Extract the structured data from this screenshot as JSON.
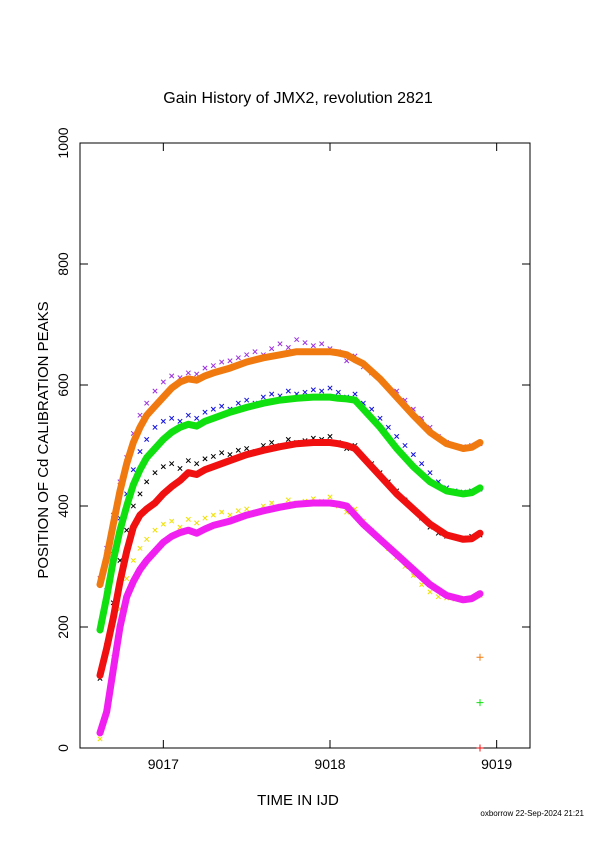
{
  "chart_data": {
    "type": "scatter",
    "title": "Gain History of JMX2, revolution 2821",
    "xlabel": "TIME IN IJD",
    "ylabel": "POSITION OF Cd CALIBRATION PEAKS",
    "xlim": [
      9016.5,
      9019.2
    ],
    "ylim": [
      0,
      1000
    ],
    "x_ticks": [
      9017,
      9018,
      9019
    ],
    "x_tick_labels": [
      "9017",
      "9018",
      "9019"
    ],
    "y_ticks": [
      0,
      200,
      400,
      600,
      800,
      1000
    ],
    "y_tick_labels": [
      "0",
      "200",
      "400",
      "600",
      "800",
      "1000"
    ],
    "grid": false,
    "footer": "oxborrow 22-Sep-2024 21:21",
    "colors": {
      "purple_scatter": "#9b30e0",
      "blue_scatter": "#1010e0",
      "black_scatter": "#000000",
      "yellow_scatter": "#f0e000",
      "orange_line": "#f07a10",
      "green_line": "#10e010",
      "red_line": "#f01010",
      "magenta_line": "#f020f0"
    },
    "series": [
      {
        "kind": "scatter",
        "color_key": "purple_scatter",
        "x": [
          9016.62,
          9016.66,
          9016.7,
          9016.74,
          9016.78,
          9016.82,
          9016.86,
          9016.9,
          9016.95,
          9017.0,
          9017.05,
          9017.1,
          9017.15,
          9017.2,
          9017.25,
          9017.3,
          9017.35,
          9017.4,
          9017.45,
          9017.5,
          9017.55,
          9017.6,
          9017.65,
          9017.7,
          9017.75,
          9017.8,
          9017.85,
          9017.9,
          9017.95,
          9018.0,
          9018.05,
          9018.1,
          9018.15,
          9018.2,
          9018.25,
          9018.3,
          9018.35,
          9018.4,
          9018.45,
          9018.5,
          9018.55,
          9018.6,
          9018.65,
          9018.7,
          9018.75,
          9018.8,
          9018.85,
          9018.9
        ],
        "y": [
          280,
          330,
          385,
          440,
          480,
          520,
          550,
          570,
          590,
          605,
          615,
          612,
          620,
          618,
          628,
          632,
          638,
          640,
          645,
          650,
          655,
          650,
          660,
          668,
          662,
          675,
          670,
          665,
          668,
          660,
          655,
          640,
          648,
          630,
          620,
          610,
          595,
          590,
          575,
          560,
          545,
          530,
          515,
          505,
          500,
          498,
          500,
          503
        ]
      },
      {
        "kind": "scatter",
        "color_key": "blue_scatter",
        "x": [
          9016.62,
          9016.66,
          9016.7,
          9016.74,
          9016.78,
          9016.82,
          9016.86,
          9016.9,
          9016.95,
          9017.0,
          9017.05,
          9017.1,
          9017.15,
          9017.2,
          9017.25,
          9017.3,
          9017.35,
          9017.4,
          9017.45,
          9017.5,
          9017.55,
          9017.6,
          9017.65,
          9017.7,
          9017.75,
          9017.8,
          9017.85,
          9017.9,
          9017.95,
          9018.0,
          9018.05,
          9018.1,
          9018.15,
          9018.2,
          9018.25,
          9018.3,
          9018.35,
          9018.4,
          9018.45,
          9018.5,
          9018.55,
          9018.6,
          9018.65,
          9018.7,
          9018.75,
          9018.8,
          9018.85,
          9018.9
        ],
        "y": [
          200,
          260,
          320,
          380,
          420,
          460,
          490,
          510,
          530,
          540,
          545,
          540,
          550,
          545,
          555,
          560,
          565,
          560,
          570,
          575,
          570,
          580,
          585,
          582,
          590,
          585,
          588,
          592,
          590,
          595,
          588,
          580,
          585,
          570,
          560,
          545,
          530,
          515,
          500,
          485,
          470,
          455,
          440,
          430,
          425,
          423,
          425,
          428
        ]
      },
      {
        "kind": "scatter",
        "color_key": "black_scatter",
        "x": [
          9016.62,
          9016.66,
          9016.7,
          9016.74,
          9016.78,
          9016.82,
          9016.86,
          9016.9,
          9016.95,
          9017.0,
          9017.05,
          9017.1,
          9017.15,
          9017.2,
          9017.25,
          9017.3,
          9017.35,
          9017.4,
          9017.45,
          9017.5,
          9017.55,
          9017.6,
          9017.65,
          9017.7,
          9017.75,
          9017.8,
          9017.85,
          9017.9,
          9017.95,
          9018.0,
          9018.05,
          9018.1,
          9018.15,
          9018.2,
          9018.25,
          9018.3,
          9018.35,
          9018.4,
          9018.45,
          9018.5,
          9018.55,
          9018.6,
          9018.65,
          9018.7,
          9018.75,
          9018.8,
          9018.85,
          9018.9
        ],
        "y": [
          115,
          170,
          240,
          310,
          360,
          400,
          420,
          440,
          455,
          465,
          470,
          462,
          475,
          470,
          478,
          482,
          488,
          485,
          492,
          495,
          490,
          500,
          505,
          500,
          510,
          505,
          508,
          512,
          510,
          515,
          505,
          495,
          500,
          480,
          470,
          455,
          440,
          425,
          410,
          395,
          380,
          365,
          355,
          350,
          348,
          347,
          350,
          352
        ]
      },
      {
        "kind": "scatter",
        "color_key": "yellow_scatter",
        "x": [
          9016.62,
          9016.66,
          9016.7,
          9016.74,
          9016.78,
          9016.82,
          9016.86,
          9016.9,
          9016.95,
          9017.0,
          9017.05,
          9017.1,
          9017.15,
          9017.2,
          9017.25,
          9017.3,
          9017.35,
          9017.4,
          9017.45,
          9017.5,
          9017.55,
          9017.6,
          9017.65,
          9017.7,
          9017.75,
          9017.8,
          9017.85,
          9017.9,
          9017.95,
          9018.0,
          9018.05,
          9018.1,
          9018.15,
          9018.2,
          9018.25,
          9018.3,
          9018.35,
          9018.4,
          9018.45,
          9018.5,
          9018.55,
          9018.6,
          9018.65,
          9018.7,
          9018.75,
          9018.8,
          9018.85,
          9018.9
        ],
        "y": [
          15,
          60,
          150,
          230,
          280,
          310,
          330,
          345,
          360,
          370,
          375,
          365,
          378,
          372,
          380,
          385,
          390,
          385,
          392,
          395,
          390,
          400,
          405,
          400,
          410,
          405,
          408,
          412,
          408,
          415,
          400,
          390,
          395,
          375,
          360,
          345,
          330,
          315,
          300,
          285,
          270,
          258,
          250,
          248,
          246,
          245,
          248,
          252
        ]
      },
      {
        "kind": "line",
        "color_key": "orange_line",
        "x": [
          9016.62,
          9016.66,
          9016.7,
          9016.74,
          9016.78,
          9016.82,
          9016.86,
          9016.9,
          9016.95,
          9017.0,
          9017.05,
          9017.1,
          9017.15,
          9017.2,
          9017.25,
          9017.3,
          9017.4,
          9017.5,
          9017.6,
          9017.7,
          9017.8,
          9017.9,
          9018.0,
          9018.05,
          9018.1,
          9018.15,
          9018.2,
          9018.3,
          9018.4,
          9018.5,
          9018.6,
          9018.7,
          9018.8,
          9018.85,
          9018.9
        ],
        "y": [
          270,
          315,
          370,
          425,
          470,
          505,
          530,
          550,
          565,
          580,
          595,
          605,
          610,
          608,
          615,
          620,
          628,
          638,
          645,
          650,
          655,
          655,
          655,
          653,
          650,
          642,
          635,
          610,
          580,
          550,
          522,
          503,
          495,
          497,
          505
        ]
      },
      {
        "kind": "line",
        "color_key": "green_line",
        "x": [
          9016.62,
          9016.66,
          9016.7,
          9016.74,
          9016.78,
          9016.82,
          9016.86,
          9016.9,
          9016.95,
          9017.0,
          9017.05,
          9017.1,
          9017.15,
          9017.2,
          9017.25,
          9017.3,
          9017.4,
          9017.5,
          9017.6,
          9017.7,
          9017.8,
          9017.9,
          9018.0,
          9018.05,
          9018.1,
          9018.15,
          9018.2,
          9018.3,
          9018.4,
          9018.5,
          9018.6,
          9018.7,
          9018.8,
          9018.85,
          9018.9
        ],
        "y": [
          195,
          250,
          310,
          360,
          400,
          435,
          460,
          480,
          495,
          510,
          522,
          530,
          535,
          532,
          540,
          545,
          555,
          563,
          570,
          575,
          578,
          580,
          580,
          578,
          577,
          575,
          560,
          530,
          495,
          465,
          440,
          425,
          420,
          422,
          430
        ]
      },
      {
        "kind": "line",
        "color_key": "red_line",
        "x": [
          9016.62,
          9016.66,
          9016.7,
          9016.74,
          9016.78,
          9016.82,
          9016.86,
          9016.9,
          9016.95,
          9017.0,
          9017.05,
          9017.1,
          9017.15,
          9017.2,
          9017.25,
          9017.3,
          9017.4,
          9017.5,
          9017.6,
          9017.7,
          9017.8,
          9017.9,
          9018.0,
          9018.05,
          9018.1,
          9018.15,
          9018.2,
          9018.3,
          9018.4,
          9018.5,
          9018.6,
          9018.7,
          9018.8,
          9018.85,
          9018.9
        ],
        "y": [
          120,
          165,
          215,
          275,
          325,
          365,
          385,
          395,
          405,
          420,
          432,
          442,
          455,
          452,
          460,
          465,
          475,
          485,
          492,
          498,
          503,
          505,
          505,
          503,
          500,
          495,
          480,
          450,
          420,
          395,
          370,
          352,
          345,
          346,
          355
        ]
      },
      {
        "kind": "line",
        "color_key": "magenta_line",
        "x": [
          9016.62,
          9016.66,
          9016.7,
          9016.74,
          9016.78,
          9016.82,
          9016.86,
          9016.9,
          9016.95,
          9017.0,
          9017.05,
          9017.1,
          9017.15,
          9017.2,
          9017.25,
          9017.3,
          9017.4,
          9017.5,
          9017.6,
          9017.7,
          9017.8,
          9017.9,
          9018.0,
          9018.05,
          9018.1,
          9018.15,
          9018.2,
          9018.3,
          9018.4,
          9018.5,
          9018.6,
          9018.7,
          9018.8,
          9018.85,
          9018.9
        ],
        "y": [
          25,
          60,
          130,
          200,
          250,
          275,
          295,
          310,
          325,
          340,
          350,
          356,
          360,
          355,
          362,
          368,
          375,
          385,
          392,
          398,
          403,
          405,
          405,
          403,
          400,
          385,
          370,
          345,
          320,
          295,
          270,
          252,
          245,
          247,
          255
        ]
      },
      {
        "kind": "marker",
        "marker": "plus",
        "color_key": "orange_line",
        "x": [
          9018.9
        ],
        "y": [
          150
        ]
      },
      {
        "kind": "marker",
        "marker": "plus",
        "color_key": "green_line",
        "x": [
          9018.9
        ],
        "y": [
          75
        ]
      },
      {
        "kind": "marker",
        "marker": "plus",
        "color_key": "red_line",
        "x": [
          9018.9
        ],
        "y": [
          0
        ]
      }
    ]
  }
}
